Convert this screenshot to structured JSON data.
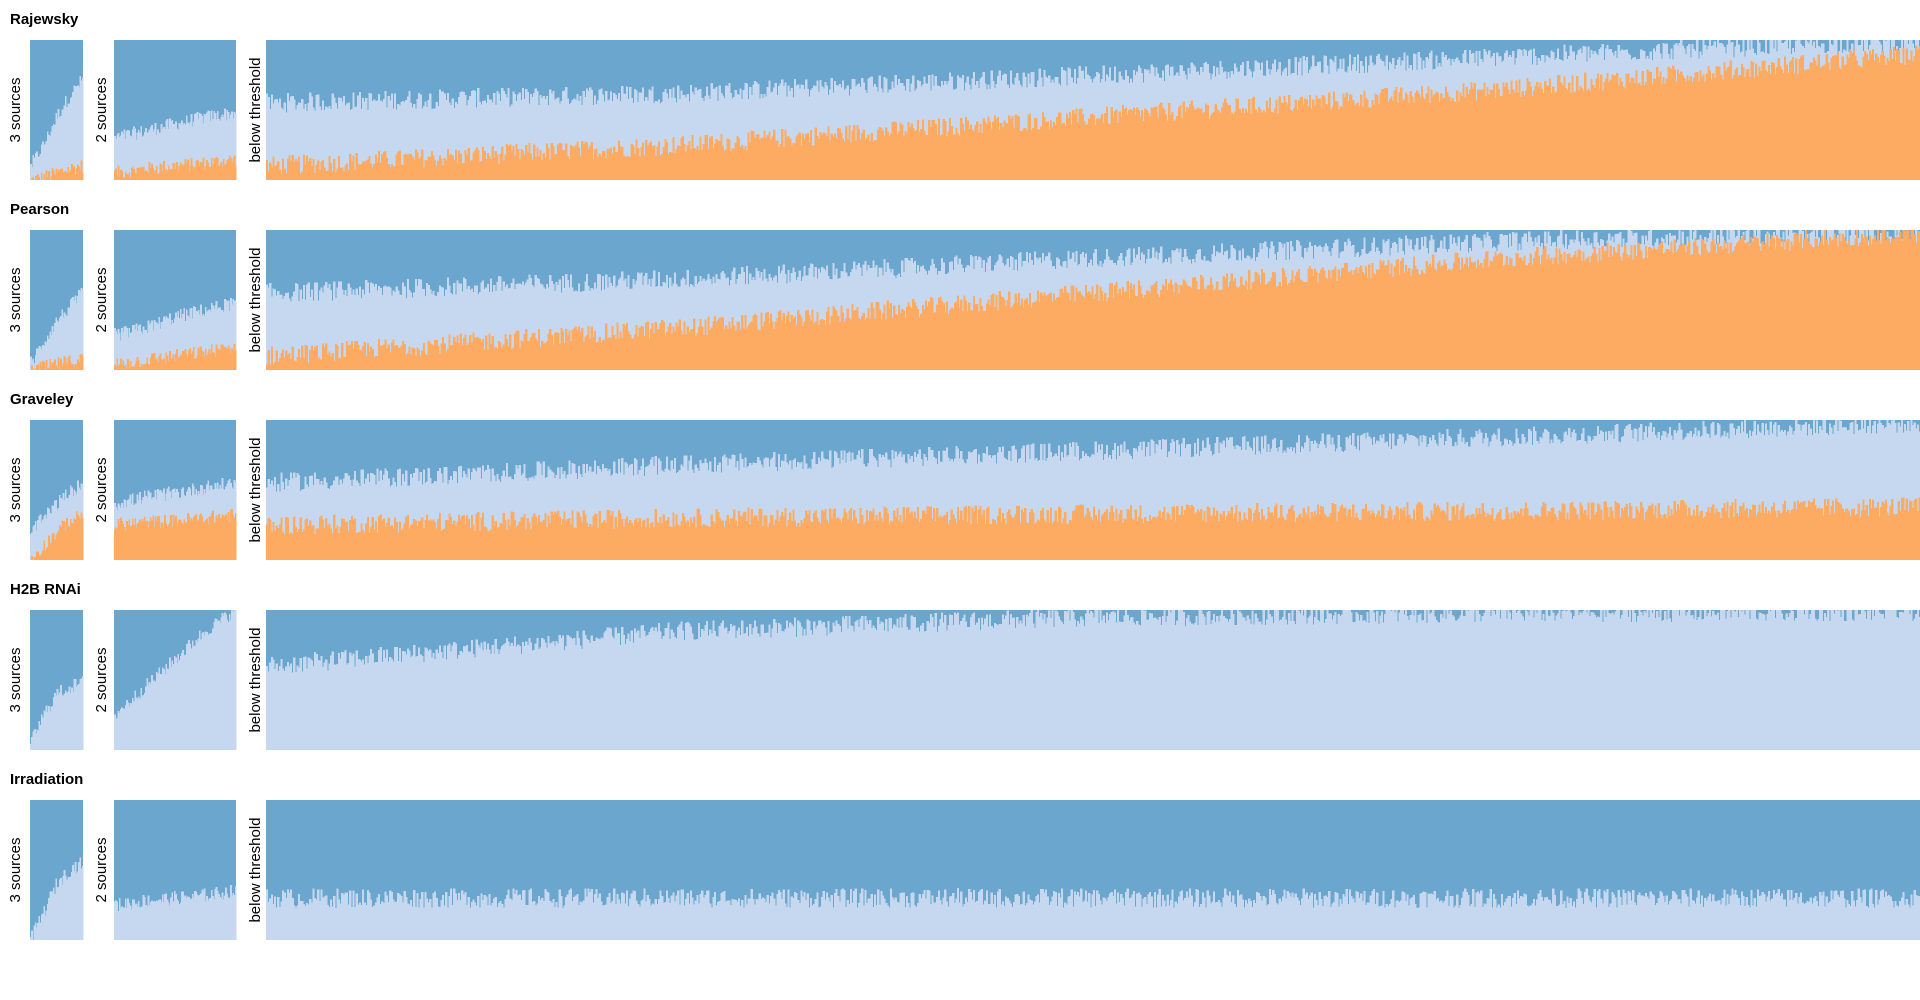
{
  "chart_data": {
    "type": "area",
    "description_style": "stacked 100% area strips, one column per sample, sorted by lowest component",
    "colors": {
      "top": "#6aa6cd",
      "middle": "#c6d8ef",
      "bottom": "#fdab63"
    },
    "panel_labels": [
      "3 sources",
      "2 sources",
      "below threshold"
    ],
    "rows": [
      {
        "title": "Rajewsky",
        "panels": [
          {
            "label": "3 sources",
            "columns": 60,
            "bottom": [
              0.0,
              0.02,
              0.05,
              0.08,
              0.1
            ],
            "middle_top": [
              0.1,
              0.25,
              0.45,
              0.6,
              0.72
            ]
          },
          {
            "label": "2 sources",
            "columns": 140,
            "bottom": [
              0.05,
              0.08,
              0.1,
              0.12,
              0.15
            ],
            "middle_top": [
              0.3,
              0.35,
              0.4,
              0.45,
              0.48
            ]
          },
          {
            "label": "below threshold",
            "columns": 1800,
            "bottom": [
              0.1,
              0.25,
              0.45,
              0.65,
              0.9
            ],
            "middle_top": [
              0.55,
              0.62,
              0.75,
              0.88,
              1.0
            ]
          }
        ]
      },
      {
        "title": "Pearson",
        "panels": [
          {
            "label": "3 sources",
            "columns": 60,
            "bottom": [
              0.0,
              0.02,
              0.04,
              0.06,
              0.08
            ],
            "middle_top": [
              0.05,
              0.2,
              0.35,
              0.45,
              0.55
            ]
          },
          {
            "label": "2 sources",
            "columns": 140,
            "bottom": [
              0.04,
              0.07,
              0.1,
              0.13,
              0.16
            ],
            "middle_top": [
              0.25,
              0.3,
              0.38,
              0.43,
              0.48
            ]
          },
          {
            "label": "below threshold",
            "columns": 1800,
            "bottom": [
              0.1,
              0.3,
              0.55,
              0.8,
              0.98
            ],
            "middle_top": [
              0.55,
              0.65,
              0.8,
              0.92,
              1.0
            ]
          }
        ]
      },
      {
        "title": "Graveley",
        "panels": [
          {
            "label": "3 sources",
            "columns": 60,
            "bottom": [
              0.0,
              0.1,
              0.2,
              0.28,
              0.32
            ],
            "middle_top": [
              0.2,
              0.3,
              0.4,
              0.48,
              0.55
            ]
          },
          {
            "label": "2 sources",
            "columns": 140,
            "bottom": [
              0.25,
              0.27,
              0.28,
              0.3,
              0.32
            ],
            "middle_top": [
              0.4,
              0.45,
              0.48,
              0.52,
              0.55
            ]
          },
          {
            "label": "below threshold",
            "columns": 1800,
            "bottom": [
              0.25,
              0.3,
              0.33,
              0.35,
              0.38
            ],
            "middle_top": [
              0.55,
              0.68,
              0.78,
              0.88,
              0.98
            ]
          }
        ]
      },
      {
        "title": "H2B RNAi",
        "panels": [
          {
            "label": "3 sources",
            "columns": 60,
            "bottom": [
              0,
              0,
              0,
              0,
              0
            ],
            "middle_top": [
              0.05,
              0.25,
              0.4,
              0.45,
              0.48
            ]
          },
          {
            "label": "2 sources",
            "columns": 140,
            "bottom": [
              0,
              0,
              0,
              0,
              0
            ],
            "middle_top": [
              0.25,
              0.45,
              0.65,
              0.85,
              1.0
            ]
          },
          {
            "label": "below threshold",
            "columns": 1800,
            "bottom": [
              0,
              0,
              0,
              0,
              0
            ],
            "middle_top": [
              0.6,
              0.85,
              0.95,
              0.98,
              0.99
            ]
          }
        ]
      },
      {
        "title": "Irradiation",
        "panels": [
          {
            "label": "3 sources",
            "columns": 60,
            "bottom": [
              0,
              0,
              0,
              0,
              0
            ],
            "middle_top": [
              0.0,
              0.2,
              0.4,
              0.5,
              0.55
            ]
          },
          {
            "label": "2 sources",
            "columns": 140,
            "bottom": [
              0,
              0,
              0,
              0,
              0
            ],
            "middle_top": [
              0.25,
              0.28,
              0.3,
              0.32,
              0.35
            ]
          },
          {
            "label": "below threshold",
            "columns": 1800,
            "bottom": [
              0,
              0,
              0,
              0,
              0
            ],
            "middle_top": [
              0.3,
              0.3,
              0.3,
              0.3,
              0.3
            ]
          }
        ]
      }
    ]
  }
}
